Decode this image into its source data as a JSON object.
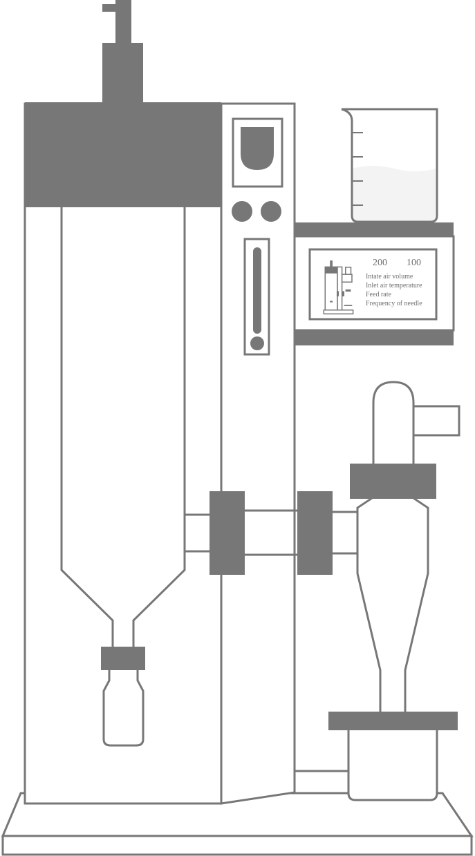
{
  "colors": {
    "stroke": "#777777",
    "fill_dark": "#777777",
    "fill_light": "#ffffff",
    "liquid": "#f3f3f3",
    "text": "#6e6e6e"
  },
  "display_panel": {
    "values": [
      "200",
      "100"
    ],
    "parameters": [
      "Intate air volume",
      "Inlet air temperature",
      "Feed rate",
      "Frequency of needle"
    ],
    "thumbnail": "spray-dryer-thumbnail-icon"
  }
}
